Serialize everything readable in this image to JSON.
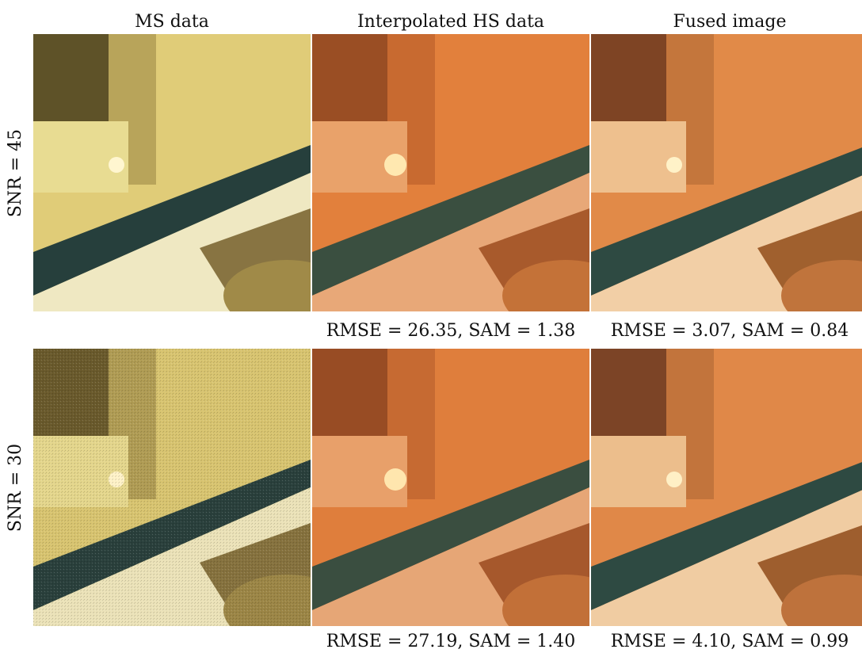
{
  "columns": [
    "MS data",
    "Interpolated HS data",
    "Fused image"
  ],
  "rows": [
    {
      "label": "SNR = 45",
      "metrics": {
        "interpolated": "RMSE = 26.35, SAM = 1.38",
        "fused": "RMSE = 3.07, SAM = 0.84"
      }
    },
    {
      "label": "SNR = 30",
      "metrics": {
        "interpolated": "RMSE = 27.19, SAM = 1.40",
        "fused": "RMSE = 4.10, SAM = 0.99"
      }
    }
  ],
  "tile_colors": {
    "ms": {
      "wall": "#e8d27a",
      "shadow": "#6b5a2a",
      "bar": "#2f5a55",
      "card": "#f4f0c8",
      "lower": "#8a7840"
    },
    "interpolated": {
      "wall": "#e07a3a",
      "shadow": "#9a4a26",
      "bar": "#3f5a45",
      "card": "#e9a672",
      "lower": "#b86a38"
    },
    "fused": {
      "wall": "#e08a48",
      "shadow": "#8a4a28",
      "bar": "#3a5a4e",
      "card": "#f0c69a",
      "lower": "#b87040"
    }
  }
}
